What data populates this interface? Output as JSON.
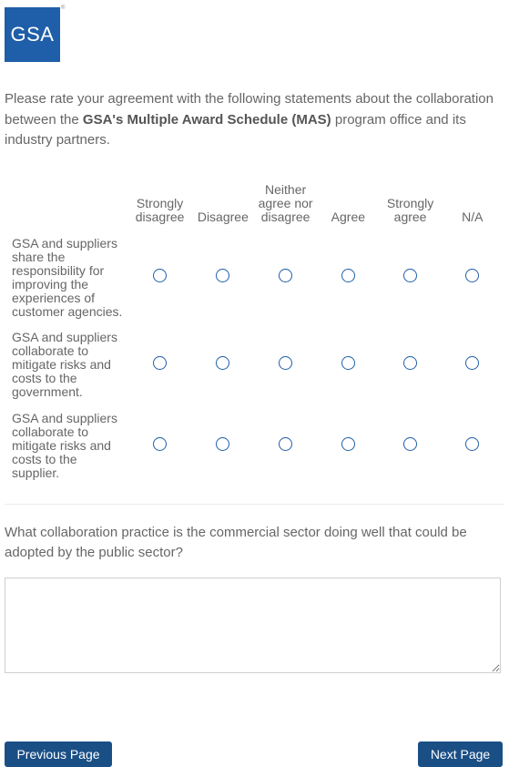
{
  "logo": {
    "text": "GSA",
    "registered": "®"
  },
  "intro": {
    "before": "Please rate your agreement with the following statements about the collaboration between the ",
    "bold": "GSA's Multiple Award Schedule (MAS)",
    "after": " program office and its industry partners."
  },
  "matrix": {
    "columns": [
      "Strongly disagree",
      "Disagree",
      "Neither agree nor disagree",
      "Agree",
      "Strongly agree",
      "N/A"
    ],
    "rows": [
      "GSA and suppliers share the responsibility for improving the experiences of customer agencies.",
      "GSA and suppliers collaborate to mitigate risks and costs to the government.",
      "GSA and suppliers collaborate to mitigate risks and costs to the supplier."
    ]
  },
  "question": {
    "text": "What collaboration practice is the commercial sector doing well that could be adopted by the public sector?",
    "value": ""
  },
  "nav": {
    "previous_label": "Previous Page",
    "next_label": "Next Page"
  },
  "colors": {
    "brand": "#1f5ea8",
    "button": "#1a4f86"
  }
}
